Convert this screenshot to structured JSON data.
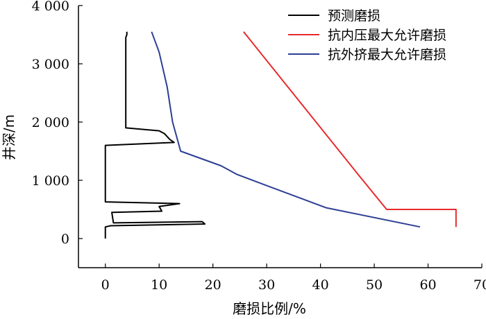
{
  "chart_data": {
    "type": "line",
    "xlabel": "磨损比例/%",
    "ylabel": "井深/m",
    "xlim": [
      -5,
      70
    ],
    "ylim": [
      -500,
      4000
    ],
    "x_ticks": [
      0,
      10,
      20,
      30,
      40,
      50,
      60,
      70
    ],
    "x_tick_labels": [
      "0",
      "10",
      "20",
      "30",
      "40",
      "50",
      "60",
      "70"
    ],
    "y_ticks": [
      0,
      1000,
      2000,
      3000,
      4000
    ],
    "y_tick_labels": [
      "0",
      "1 000",
      "2 000",
      "3 000",
      "4 000"
    ],
    "grid": false,
    "legend_position": "top-right",
    "series": [
      {
        "name": "预测磨损",
        "color": "#000000",
        "points": [
          [
            0,
            0
          ],
          [
            0,
            200
          ],
          [
            1,
            220
          ],
          [
            18.5,
            250
          ],
          [
            18,
            290
          ],
          [
            1.5,
            270
          ],
          [
            1.2,
            450
          ],
          [
            10.5,
            470
          ],
          [
            10,
            550
          ],
          [
            13.8,
            600
          ],
          [
            0,
            630
          ],
          [
            0,
            1600
          ],
          [
            12.8,
            1650
          ],
          [
            12,
            1700
          ],
          [
            11,
            1800
          ],
          [
            10,
            1850
          ],
          [
            3.8,
            1900
          ],
          [
            3.8,
            3450
          ],
          [
            4,
            3500
          ],
          [
            4,
            3550
          ]
        ]
      },
      {
        "name": "抗内压最大允许磨损",
        "color": "#e8292b",
        "points": [
          [
            65.2,
            200
          ],
          [
            65.2,
            500
          ],
          [
            52.3,
            500
          ],
          [
            47,
            1100
          ],
          [
            25.7,
            3550
          ]
        ]
      },
      {
        "name": "抗外挤最大允许磨损",
        "color": "#2c3e94",
        "points": [
          [
            58.5,
            200
          ],
          [
            41,
            530
          ],
          [
            24.5,
            1100
          ],
          [
            21.5,
            1250
          ],
          [
            14,
            1500
          ],
          [
            12.5,
            2000
          ],
          [
            12,
            2300
          ],
          [
            11.5,
            2600
          ],
          [
            10,
            3200
          ],
          [
            8.6,
            3550
          ]
        ]
      }
    ]
  }
}
